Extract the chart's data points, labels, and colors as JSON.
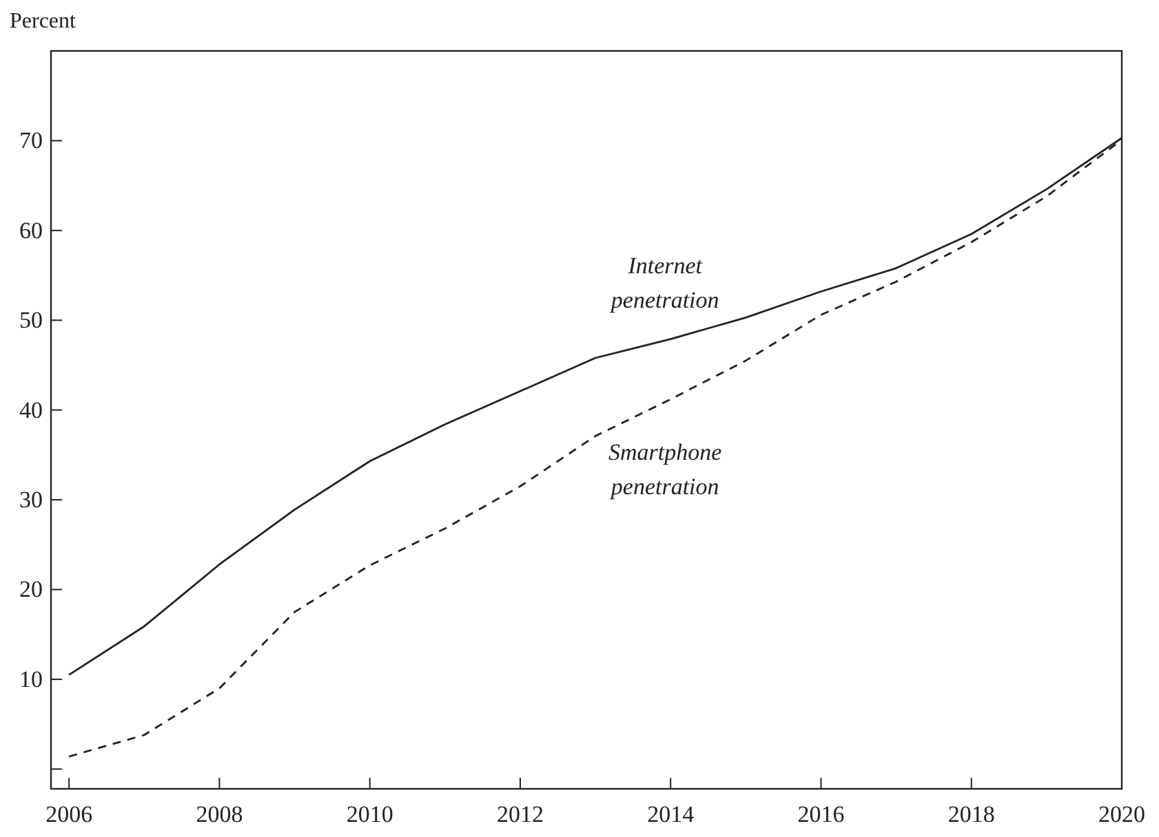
{
  "chart_data": {
    "type": "line",
    "ylabel": "Percent",
    "x": [
      2006,
      2007,
      2008,
      2009,
      2010,
      2011,
      2012,
      2013,
      2014,
      2015,
      2016,
      2017,
      2018,
      2019,
      2020
    ],
    "series": [
      {
        "name": "Internet penetration",
        "color": "#222222",
        "line_style": "solid",
        "values": [
          10.5,
          15.9,
          22.8,
          28.9,
          34.3,
          38.4,
          42.1,
          45.8,
          47.9,
          50.3,
          53.2,
          55.8,
          59.6,
          64.6,
          70.3
        ]
      },
      {
        "name": "Smartphone penetration",
        "color": "#222222",
        "line_style": "dashed",
        "values": [
          1.4,
          3.8,
          9.0,
          17.5,
          22.7,
          26.8,
          31.5,
          37.1,
          41.2,
          45.5,
          50.6,
          54.3,
          58.7,
          63.8,
          70.1
        ]
      }
    ],
    "xlim": [
      2005.76,
      2020
    ],
    "xticks": [
      2006,
      2008,
      2010,
      2012,
      2014,
      2016,
      2018,
      2020
    ],
    "ylim": [
      -2.2,
      80
    ],
    "yticks": [
      {
        "value": 0,
        "label": null
      },
      10,
      20,
      30,
      40,
      50,
      60,
      70
    ]
  }
}
